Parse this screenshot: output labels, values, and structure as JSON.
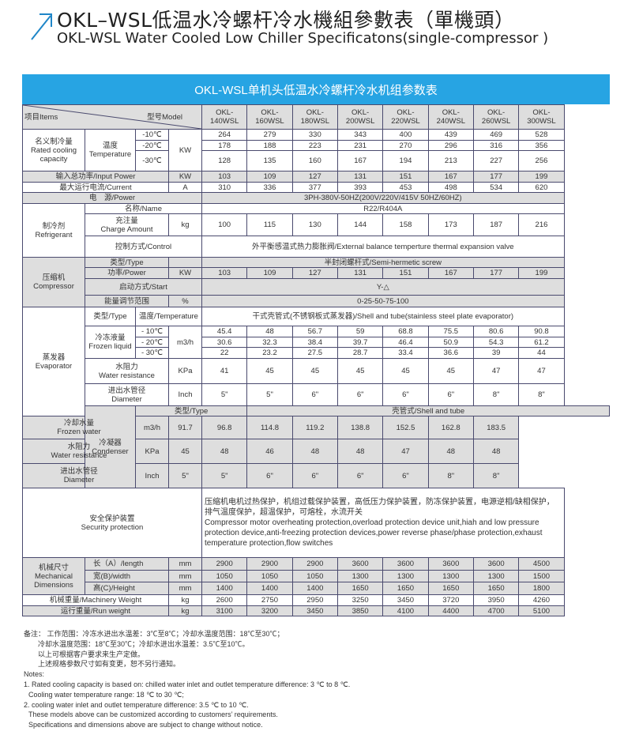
{
  "title_cn": "OKL–WSL低温水冷螺杆冷水機組參數表（單機頭）",
  "title_en": "OKL-WSL Water Cooled Low Chiller Specificatons(single-compressor )",
  "banner": "OKL-WSL单机头低温水冷螺杆冷水机组参数表",
  "accent_color": "#27a4e3",
  "header": {
    "items": "项目Items",
    "model": "型号Model",
    "models": [
      [
        "OKL-",
        "140WSL"
      ],
      [
        "OKL-",
        "160WSL"
      ],
      [
        "OKL-",
        "180WSL"
      ],
      [
        "OKL-",
        "200WSL"
      ],
      [
        "OKL-",
        "220WSL"
      ],
      [
        "OKL-",
        "240WSL"
      ],
      [
        "OKL-",
        "260WSL"
      ],
      [
        "OKL-",
        "300WSL"
      ]
    ]
  },
  "labels": {
    "rated_cn": "名义制冷量",
    "rated_en": "Rated cooling capacity",
    "temp_cn": "温度",
    "temp_en": "Temperature",
    "m10": "-10℃",
    "m20": "-20℃",
    "m30": "-30℃",
    "kw": "KW",
    "a": "A",
    "kg": "kg",
    "pct": "%",
    "m3h": "m3/h",
    "kpa": "KPa",
    "inch": "Inch",
    "mm": "mm",
    "input_power": "输入总功率/Input Power",
    "current": "最大运行电流/Current",
    "power": "电　源/Power",
    "ref_cn": "制冷剂",
    "ref_en": "Refrigerant",
    "name": "名称/Name",
    "charge_cn": "充注量",
    "charge_en": "Charge Amount",
    "control": "控制方式/Control",
    "comp_cn": "压缩机",
    "comp_en": "Compressor",
    "type": "类型/Type",
    "comp_power": "功率/Power",
    "start": "启动方式/Start",
    "energy": "能量调节范围",
    "evap_cn": "蒸发器",
    "evap_en": "Evaporator",
    "evap_temp": "温度/Temperature",
    "frozen_cn": "冷冻液量",
    "frozen_en": "Frozen liquid",
    "e10": "- 10℃",
    "e20": "- 20℃",
    "e30": "- 30℃",
    "wr_cn": "水阻力",
    "wr_en": "Water resistance",
    "dia_cn": "进出水管径",
    "dia_en": "Diameter",
    "cond_cn": "冷凝器",
    "cond_en": "Condenser",
    "cw_cn": "冷却水量",
    "cw_en": "Frozen water",
    "sec_cn": "安全保护装置",
    "sec_en": "Security protection",
    "mech_cn": "机械尺寸",
    "mech_en": "Mechanical Dimensions",
    "length": "长（A）/length",
    "width": "宽(B)/width",
    "height": "高(C)/Height",
    "mweight": "机械重量/Machinery Weight",
    "rweight": "运行重量/Run weight"
  },
  "spans": {
    "power": "3PH-380V-50HZ(200V/220V/415V  50HZ/60HZ)",
    "ref_name": "R22/R404A",
    "control": "外平衡感温式热力膨胀阀/External balance temperture thermal expansion valve",
    "comp_type": "半封闭螺杆式/Semi-hermetic screw",
    "start": "Y-△",
    "energy": "0-25-50-75-100",
    "evap_type": "干式壳管式(不锈钢板式蒸发器)/Shell and tube(stainless steel plate evaporator)",
    "cond_type": "壳管式/Shell and tube",
    "security_cn": "压缩机电机过热保护，机组过载保护装置，高低压力保护装置，防冻保护装置，电源逆相/缺相保护，排气温度保护，超温保护，可熔栓，水流开关",
    "security_en": "Compressor motor overheating protection,overload protection device unit,hiah and low pressure protection device,anti-freezing protection devices,power reverse phase/phase protection,exhaust temperature protection,flow switches"
  },
  "rows": {
    "cap_m10": [
      "264",
      "279",
      "330",
      "343",
      "400",
      "439",
      "469",
      "528"
    ],
    "cap_m20": [
      "178",
      "188",
      "223",
      "231",
      "270",
      "296",
      "316",
      "356"
    ],
    "cap_m30": [
      "128",
      "135",
      "160",
      "167",
      "194",
      "213",
      "227",
      "256"
    ],
    "input_power": [
      "103",
      "109",
      "127",
      "131",
      "151",
      "167",
      "177",
      "199"
    ],
    "current": [
      "310",
      "336",
      "377",
      "393",
      "453",
      "498",
      "534",
      "620"
    ],
    "charge": [
      "100",
      "115",
      "130",
      "144",
      "158",
      "173",
      "187",
      "216"
    ],
    "comp_power": [
      "103",
      "109",
      "127",
      "131",
      "151",
      "167",
      "177",
      "199"
    ],
    "evap_m10": [
      "45.4",
      "48",
      "56.7",
      "59",
      "68.8",
      "75.5",
      "80.6",
      "90.8"
    ],
    "evap_m20": [
      "30.6",
      "32.3",
      "38.4",
      "39.7",
      "46.4",
      "50.9",
      "54.3",
      "61.2"
    ],
    "evap_m30": [
      "22",
      "23.2",
      "27.5",
      "28.7",
      "33.4",
      "36.6",
      "39",
      "44"
    ],
    "evap_wr": [
      "41",
      "45",
      "45",
      "45",
      "45",
      "45",
      "47",
      "47"
    ],
    "evap_dia": [
      "5\"",
      "5\"",
      "6\"",
      "6\"",
      "6\"",
      "6\"",
      "8\"",
      "8\""
    ],
    "cond_flow": [
      "91.7",
      "96.8",
      "114.8",
      "119.2",
      "138.8",
      "152.5",
      "162.8",
      "183.5"
    ],
    "cond_wr": [
      "45",
      "48",
      "46",
      "48",
      "48",
      "47",
      "48",
      "48"
    ],
    "cond_dia": [
      "5\"",
      "5\"",
      "6\"",
      "6\"",
      "6\"",
      "6\"",
      "8\"",
      "8\""
    ],
    "length": [
      "2900",
      "2900",
      "2900",
      "3600",
      "3600",
      "3600",
      "3600",
      "4500"
    ],
    "width": [
      "1050",
      "1050",
      "1050",
      "1300",
      "1300",
      "1300",
      "1300",
      "1500"
    ],
    "height": [
      "1400",
      "1400",
      "1400",
      "1650",
      "1650",
      "1650",
      "1650",
      "1800"
    ],
    "mweight": [
      "2600",
      "2750",
      "2950",
      "3250",
      "3450",
      "3720",
      "3950",
      "4260"
    ],
    "rweight": [
      "3100",
      "3200",
      "3450",
      "3850",
      "4100",
      "4400",
      "4700",
      "5100"
    ]
  },
  "notes": [
    "备注：  工作范围：冷冻水进出水温差：3℃至8℃；冷却水温度范围：18℃至30℃；",
    "冷却水温度范围：18℃至30℃；冷却水进出水温差：3.5℃至10℃。",
    "以上可根据客户要求来生产定做。",
    "上述规格参数尺寸如有变更，恕不另行通知。",
    "Notes:",
    "1. Rated cooling capacity is based on: chilled water inlet and outlet temperature difference: 3 ℃ to 8 ℃.",
    "Cooling water temperature range: 18 ℃ to 30 ℃;",
    "2. cooling water inlet and outlet temperature difference: 3.5 ℃ to 10 ℃.",
    "These models above can be customized according to customers’  requirements.",
    "Specifications and dimensions above are subject to change without notice."
  ]
}
